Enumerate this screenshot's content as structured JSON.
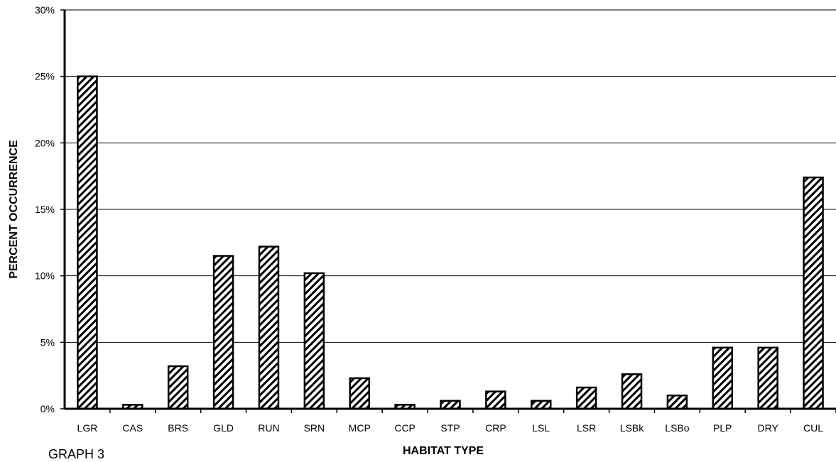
{
  "caption": "GRAPH 3",
  "chart_data": {
    "type": "bar",
    "title": "",
    "xlabel": "HABITAT TYPE",
    "ylabel": "PERCENT OCCURRENCE",
    "ylim": [
      0,
      30
    ],
    "yticks": [
      0,
      5,
      10,
      15,
      20,
      25,
      30
    ],
    "ytick_labels": [
      "0%",
      "5%",
      "10%",
      "15%",
      "20%",
      "25%",
      "30%"
    ],
    "grid": true,
    "fill_pattern": "diagonal-hatch",
    "bar_color": "#000000",
    "categories": [
      "LGR",
      "CAS",
      "BRS",
      "GLD",
      "RUN",
      "SRN",
      "MCP",
      "CCP",
      "STP",
      "CRP",
      "LSL",
      "LSR",
      "LSBk",
      "LSBo",
      "PLP",
      "DRY",
      "CUL"
    ],
    "values": [
      25.0,
      0.3,
      3.2,
      11.5,
      12.2,
      10.2,
      2.3,
      0.3,
      0.6,
      1.3,
      0.6,
      1.6,
      2.6,
      1.0,
      4.6,
      4.6,
      17.4
    ]
  }
}
